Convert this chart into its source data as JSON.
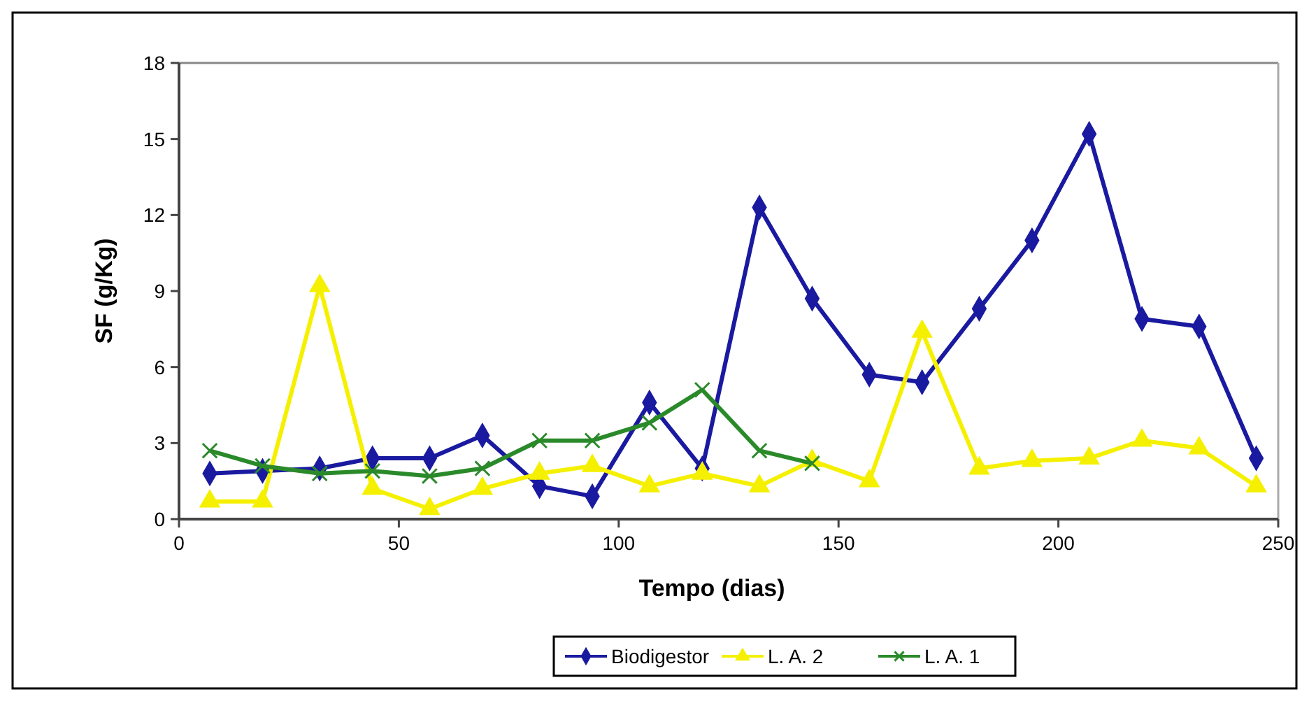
{
  "chart_data": {
    "type": "line",
    "xlabel": "Tempo (dias)",
    "ylabel": "SF (g/Kg)",
    "x": [
      7,
      19,
      32,
      44,
      57,
      69,
      82,
      94,
      107,
      119,
      132,
      144,
      157,
      169,
      182,
      194,
      207,
      219,
      232,
      245
    ],
    "series": [
      {
        "name": "Biodigestor",
        "color": "#1a1aa0",
        "marker": "diamond",
        "values": [
          1.8,
          1.9,
          2.0,
          2.4,
          2.4,
          3.3,
          1.3,
          0.9,
          4.6,
          2.0,
          12.3,
          8.7,
          5.7,
          5.4,
          8.3,
          11.0,
          15.2,
          7.9,
          7.6,
          2.4
        ]
      },
      {
        "name": "L. A. 2",
        "color": "#f5f000",
        "marker": "triangle",
        "values": [
          0.7,
          0.7,
          9.2,
          1.2,
          0.4,
          1.2,
          1.8,
          2.1,
          1.3,
          1.8,
          1.3,
          2.3,
          1.5,
          7.4,
          2.0,
          2.3,
          2.4,
          3.1,
          2.8,
          1.3
        ]
      },
      {
        "name": "L. A. 1",
        "color": "#2a8a2a",
        "marker": "cross",
        "x": [
          7,
          19,
          32,
          44,
          57,
          69,
          82,
          94,
          107,
          119,
          132,
          144
        ],
        "values": [
          2.7,
          2.1,
          1.8,
          1.9,
          1.7,
          2.0,
          3.1,
          3.1,
          3.8,
          5.1,
          2.7,
          2.2
        ]
      }
    ],
    "xlim": [
      0,
      250
    ],
    "xticks": [
      0,
      50,
      100,
      150,
      200,
      250
    ],
    "ylim": [
      0,
      18
    ],
    "yticks": [
      0,
      3,
      6,
      9,
      12,
      15,
      18
    ],
    "grid": false,
    "legend": "bottom",
    "line_style": "solid"
  }
}
